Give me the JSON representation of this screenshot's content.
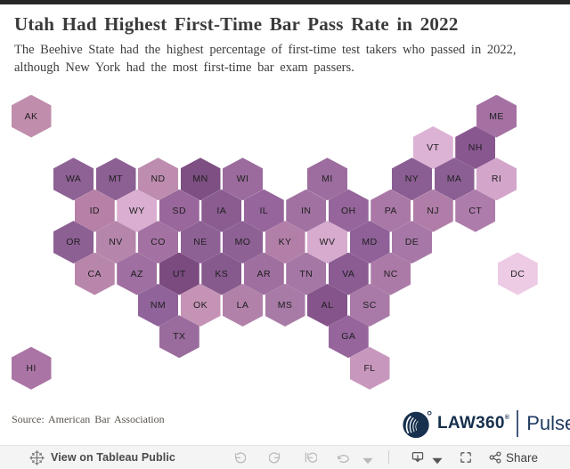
{
  "header": {
    "title": "Utah Had Highest First-Time Bar Pass Rate in 2022",
    "subtitle_line1": "The Beehive State had the highest percentage of first-time test takers who passed in 2022,",
    "subtitle_line2": "although New York had the most first-time bar exam passers."
  },
  "chart_data": {
    "type": "heatmap",
    "subtype": "hex-tile-cartogram-us",
    "title": "Utah Had Highest First-Time Bar Pass Rate in 2022",
    "encoding": "state first-time bar pass rate encoded by fill darkness (darker purple = higher pass rate; UT darkest, DC lightest)",
    "legend": "none visible",
    "states": [
      {
        "abbr": "AK",
        "row": 0,
        "col": 0,
        "color": "#c18dad"
      },
      {
        "abbr": "ME",
        "row": 0,
        "col": 11,
        "color": "#a571a3"
      },
      {
        "abbr": "VT",
        "row": 1,
        "col": 9.5,
        "color": "#dcb2d5"
      },
      {
        "abbr": "NH",
        "row": 1,
        "col": 10.5,
        "color": "#89578f"
      },
      {
        "abbr": "WA",
        "row": 2,
        "col": 1,
        "color": "#8e6295"
      },
      {
        "abbr": "MT",
        "row": 2,
        "col": 2,
        "color": "#8c6093"
      },
      {
        "abbr": "ND",
        "row": 2,
        "col": 3,
        "color": "#bd8cae"
      },
      {
        "abbr": "MN",
        "row": 2,
        "col": 4,
        "color": "#7d4f82"
      },
      {
        "abbr": "WI",
        "row": 2,
        "col": 5,
        "color": "#9a6b9c"
      },
      {
        "abbr": "MI",
        "row": 2,
        "col": 7,
        "color": "#9c6d9e"
      },
      {
        "abbr": "NY",
        "row": 2,
        "col": 9,
        "color": "#8a5e92"
      },
      {
        "abbr": "MA",
        "row": 2,
        "col": 10,
        "color": "#8b5f93"
      },
      {
        "abbr": "RI",
        "row": 2,
        "col": 11,
        "color": "#d3a5ca"
      },
      {
        "abbr": "ID",
        "row": 3,
        "col": 1.5,
        "color": "#b780a6"
      },
      {
        "abbr": "WY",
        "row": 3,
        "col": 2.5,
        "color": "#d9aed0"
      },
      {
        "abbr": "SD",
        "row": 3,
        "col": 3.5,
        "color": "#99679b"
      },
      {
        "abbr": "IA",
        "row": 3,
        "col": 4.5,
        "color": "#8a5c90"
      },
      {
        "abbr": "IL",
        "row": 3,
        "col": 5.5,
        "color": "#95659b"
      },
      {
        "abbr": "IN",
        "row": 3,
        "col": 6.5,
        "color": "#a172a1"
      },
      {
        "abbr": "OH",
        "row": 3,
        "col": 7.5,
        "color": "#95659b"
      },
      {
        "abbr": "PA",
        "row": 3,
        "col": 8.5,
        "color": "#aa78a6"
      },
      {
        "abbr": "NJ",
        "row": 3,
        "col": 9.5,
        "color": "#b07da8"
      },
      {
        "abbr": "CT",
        "row": 3,
        "col": 10.5,
        "color": "#ad7cab"
      },
      {
        "abbr": "OR",
        "row": 4,
        "col": 1,
        "color": "#8d6094"
      },
      {
        "abbr": "NV",
        "row": 4,
        "col": 2,
        "color": "#b585ab"
      },
      {
        "abbr": "CO",
        "row": 4,
        "col": 3,
        "color": "#a372a2"
      },
      {
        "abbr": "NE",
        "row": 4,
        "col": 4,
        "color": "#8e6195"
      },
      {
        "abbr": "MO",
        "row": 4,
        "col": 5,
        "color": "#8e6195"
      },
      {
        "abbr": "KY",
        "row": 4,
        "col": 6,
        "color": "#b27fa9"
      },
      {
        "abbr": "WV",
        "row": 4,
        "col": 7,
        "color": "#d6abce"
      },
      {
        "abbr": "MD",
        "row": 4,
        "col": 8,
        "color": "#8f6198"
      },
      {
        "abbr": "DE",
        "row": 4,
        "col": 9,
        "color": "#a778a7"
      },
      {
        "abbr": "CA",
        "row": 5,
        "col": 1.5,
        "color": "#b986ab"
      },
      {
        "abbr": "AZ",
        "row": 5,
        "col": 2.5,
        "color": "#9e6fa0"
      },
      {
        "abbr": "UT",
        "row": 5,
        "col": 3.5,
        "color": "#7b4b80"
      },
      {
        "abbr": "KS",
        "row": 5,
        "col": 4.5,
        "color": "#875a8e"
      },
      {
        "abbr": "AR",
        "row": 5,
        "col": 5.5,
        "color": "#9e6f9f"
      },
      {
        "abbr": "TN",
        "row": 5,
        "col": 6.5,
        "color": "#a577a5"
      },
      {
        "abbr": "VA",
        "row": 5,
        "col": 7.5,
        "color": "#8a5c92"
      },
      {
        "abbr": "NC",
        "row": 5,
        "col": 8.5,
        "color": "#ab7aa7"
      },
      {
        "abbr": "DC",
        "row": 5,
        "col": 11.5,
        "color": "#edcbe4"
      },
      {
        "abbr": "NM",
        "row": 6,
        "col": 3,
        "color": "#90639a"
      },
      {
        "abbr": "OK",
        "row": 6,
        "col": 4,
        "color": "#c593b6"
      },
      {
        "abbr": "LA",
        "row": 6,
        "col": 5,
        "color": "#b181aa"
      },
      {
        "abbr": "MS",
        "row": 6,
        "col": 6,
        "color": "#a87aa6"
      },
      {
        "abbr": "AL",
        "row": 6,
        "col": 7,
        "color": "#85548b"
      },
      {
        "abbr": "SC",
        "row": 6,
        "col": 8,
        "color": "#a97aa7"
      },
      {
        "abbr": "TX",
        "row": 7,
        "col": 3.5,
        "color": "#9a6b9d"
      },
      {
        "abbr": "GA",
        "row": 7,
        "col": 7.5,
        "color": "#96659c"
      },
      {
        "abbr": "HI",
        "row": 8,
        "col": 0,
        "color": "#aa74a5"
      },
      {
        "abbr": "FL",
        "row": 8,
        "col": 8,
        "color": "#c897bd"
      }
    ]
  },
  "footer": {
    "source": "Source: American Bar Association",
    "logo": {
      "wordmark": "LAW360",
      "registered": "®",
      "suffix": "Pulse",
      "navy": "#16304d"
    }
  },
  "toolbar": {
    "view_label": "View on Tableau Public",
    "share_label": "Share",
    "icons": [
      "tableau-sparkle",
      "undo",
      "redo",
      "replay",
      "refresh",
      "refresh-caret",
      "download",
      "download-caret",
      "fullscreen",
      "share"
    ]
  }
}
